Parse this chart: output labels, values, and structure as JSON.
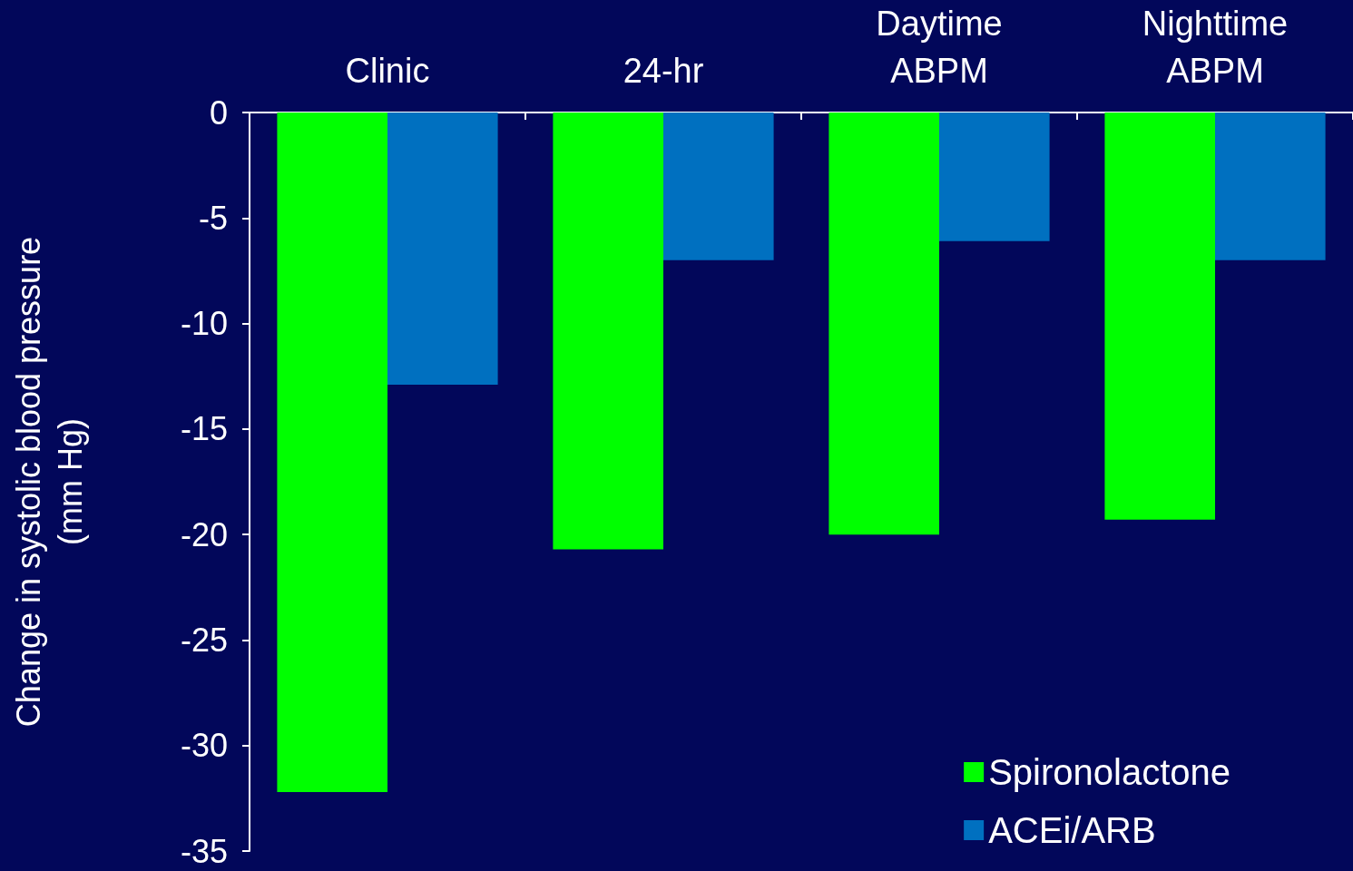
{
  "chart_data": {
    "type": "bar",
    "categories": [
      "Clinic",
      "24-hr",
      "Daytime\nABPM",
      "Nighttime\nABPM"
    ],
    "series": [
      {
        "name": "Spironolactone",
        "color": "#00ff00",
        "values": [
          -32.2,
          -20.7,
          -20.0,
          -19.3
        ]
      },
      {
        "name": "ACEi/ARB",
        "color": "#0070c0",
        "values": [
          -12.9,
          -7.0,
          -6.1,
          -7.0
        ]
      }
    ],
    "ylabel": "Change in systolic blood pressure\n(mm Hg)",
    "ylim": [
      -35,
      0
    ],
    "yticks": [
      -35,
      -30,
      -25,
      -20,
      -15,
      -10,
      -5,
      0
    ],
    "grid": false,
    "legend": "bottom right"
  }
}
